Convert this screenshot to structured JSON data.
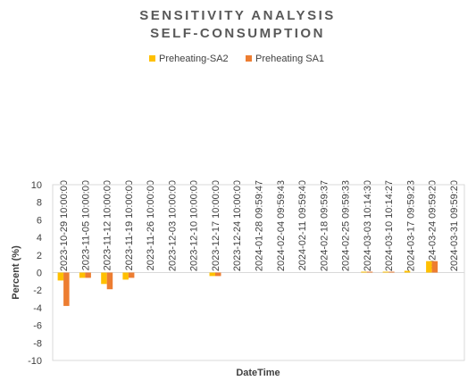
{
  "chart_data": {
    "type": "bar",
    "title": "SENSITIVITY ANALYSIS",
    "subtitle": "SELF-CONSUMPTION",
    "xlabel": "DateTime",
    "ylabel": "Percent (%)",
    "ylim": [
      -10,
      10
    ],
    "yticks": [
      10,
      8,
      6,
      4,
      2,
      0,
      -2,
      -4,
      -6,
      -8,
      -10
    ],
    "grid": false,
    "legend_position": "top",
    "x_axis_position": "top",
    "categories": [
      "2023-10-29 10:00:00",
      "2023-11-05 10:00:00",
      "2023-11-12 10:00:00",
      "2023-11-19 10:00:00",
      "2023-11-26 10:00:00",
      "2023-12-03 10:00:00",
      "2023-12-10 10:00:00",
      "2023-12-17 10:00:00",
      "2023-12-24 10:00:00",
      "2024-01-28 09:59:47",
      "2024-02-04 09:59:43",
      "2024-02-11 09:59:40",
      "2024-02-18 09:59:37",
      "2024-02-25 09:59:33",
      "2024-03-03 10:14:30",
      "2024-03-10 10:14:27",
      "2024-03-17 09:59:23",
      "2024-03-24 09:59:20",
      "2024-03-31 09:59:20"
    ],
    "series": [
      {
        "name": "Preheating-SA2",
        "color": "#FFC000",
        "values": [
          -0.9,
          -0.6,
          -1.3,
          -0.8,
          0,
          0,
          0,
          -0.4,
          0,
          0,
          0,
          0,
          0,
          0,
          0.1,
          0.1,
          0.2,
          1.3,
          0
        ]
      },
      {
        "name": "Preheating SA1",
        "color": "#ED7D31",
        "values": [
          -3.8,
          -0.6,
          -1.9,
          -0.6,
          0,
          0,
          0,
          -0.4,
          0,
          0,
          0,
          0,
          0,
          0,
          0.1,
          0.1,
          0,
          1.3,
          0
        ]
      }
    ]
  }
}
